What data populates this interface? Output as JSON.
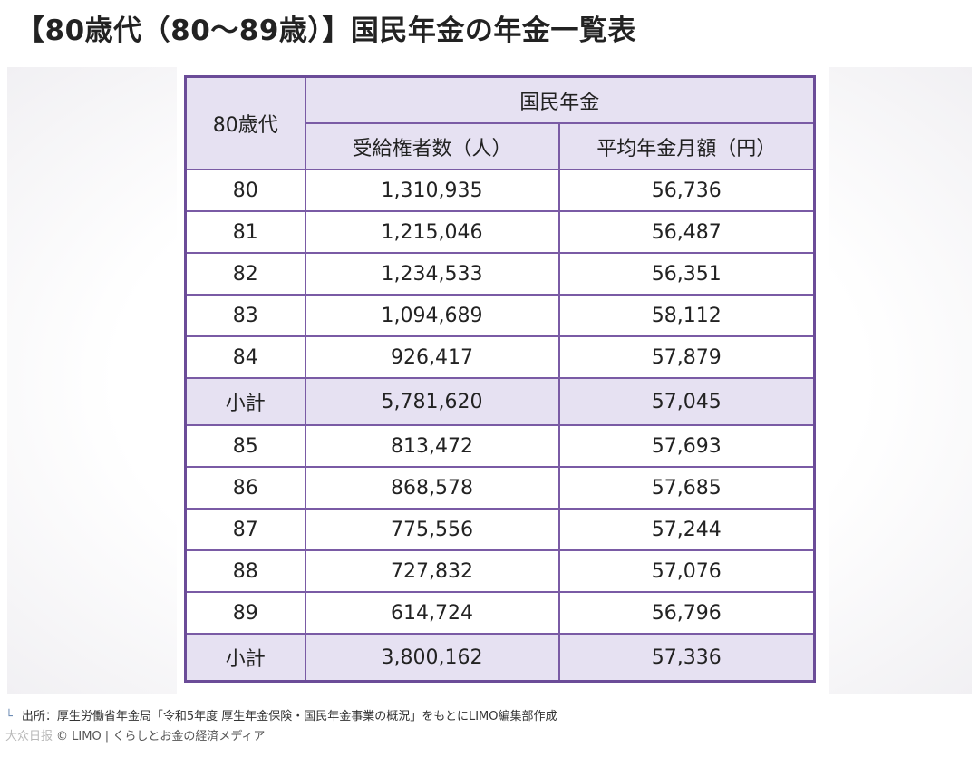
{
  "title": "【80歳代（80〜89歳）】国民年金の年金一覧表",
  "table": {
    "corner_header": "80歳代",
    "group_header": "国民年金",
    "col_recipients": "受給権者数（人）",
    "col_average": "平均年金月額（円）",
    "rows": [
      {
        "age": "80",
        "recipients": "1,310,935",
        "average": "56,736"
      },
      {
        "age": "81",
        "recipients": "1,215,046",
        "average": "56,487"
      },
      {
        "age": "82",
        "recipients": "1,234,533",
        "average": "56,351"
      },
      {
        "age": "83",
        "recipients": "1,094,689",
        "average": "58,112"
      },
      {
        "age": "84",
        "recipients": "926,417",
        "average": "57,879"
      },
      {
        "age": "小計",
        "recipients": "5,781,620",
        "average": "57,045"
      },
      {
        "age": "85",
        "recipients": "813,472",
        "average": "57,693"
      },
      {
        "age": "86",
        "recipients": "868,578",
        "average": "57,685"
      },
      {
        "age": "87",
        "recipients": "775,556",
        "average": "57,244"
      },
      {
        "age": "88",
        "recipients": "727,832",
        "average": "57,076"
      },
      {
        "age": "89",
        "recipients": "614,724",
        "average": "56,796"
      },
      {
        "age": "小計",
        "recipients": "3,800,162",
        "average": "57,336"
      }
    ]
  },
  "caption": {
    "corner_mark": "└",
    "source": "出所：厚生労働省年金局「令和5年度 厚生年金保険・国民年金事業の概況」をもとにLIMO編集部作成",
    "copyright": "© LIMO | くらしとお金の経済メディア",
    "watermark": "大众日报"
  }
}
